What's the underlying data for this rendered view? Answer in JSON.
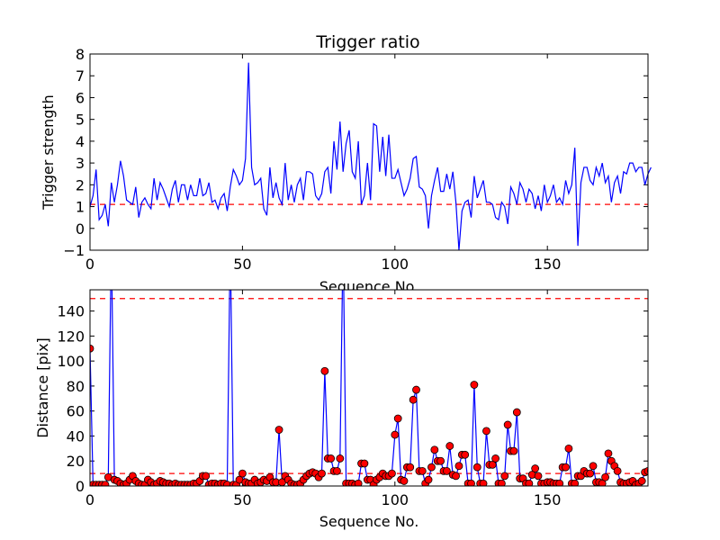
{
  "chart_data": [
    {
      "type": "line",
      "title": "Trigger ratio",
      "xlabel": "Sequence No.",
      "ylabel": "Trigger strength",
      "xlim": [
        0,
        183
      ],
      "ylim": [
        -1,
        8
      ],
      "xticks": [
        "0",
        "50",
        "100",
        "150"
      ],
      "yticks": [
        "−1",
        "0",
        "1",
        "2",
        "3",
        "4",
        "5",
        "6",
        "7",
        "8"
      ],
      "threshold": 1.1,
      "colors": {
        "line": "#0000ff",
        "threshold": "#ff0000"
      },
      "series": [
        {
          "values": [
            1.0,
            1.5,
            2.7,
            0.4,
            0.6,
            1.1,
            0.1,
            2.1,
            1.2,
            2.0,
            3.1,
            2.4,
            1.3,
            1.2,
            1.1,
            1.9,
            0.5,
            1.2,
            1.4,
            1.1,
            0.9,
            2.3,
            1.3,
            2.1,
            1.8,
            1.4,
            1.0,
            1.8,
            2.2,
            1.2,
            2.0,
            2.0,
            1.3,
            2.0,
            1.5,
            1.5,
            2.3,
            1.5,
            1.6,
            2.1,
            1.2,
            1.3,
            0.9,
            1.4,
            1.6,
            0.8,
            1.9,
            2.7,
            2.4,
            2.0,
            2.2,
            3.2,
            7.6,
            2.8,
            2.0,
            2.1,
            2.3,
            0.9,
            0.6,
            2.8,
            1.4,
            2.1,
            1.4,
            1.1,
            3.0,
            1.3,
            2.0,
            1.2,
            2.0,
            2.3,
            1.3,
            2.6,
            2.6,
            2.5,
            1.5,
            1.3,
            1.6,
            2.6,
            2.8,
            1.6,
            4.0,
            2.7,
            4.9,
            2.6,
            3.9,
            4.5,
            2.6,
            2.3,
            4.0,
            1.1,
            1.5,
            3.0,
            1.3,
            4.8,
            4.7,
            2.6,
            4.2,
            2.4,
            4.3,
            2.3,
            2.3,
            2.7,
            2.1,
            1.5,
            1.8,
            2.3,
            3.2,
            3.3,
            1.9,
            1.8,
            1.5,
            0.0,
            1.5,
            2.2,
            2.8,
            1.7,
            1.7,
            2.5,
            1.8,
            2.6,
            1.2,
            -1.0,
            0.8,
            1.2,
            1.3,
            0.5,
            2.4,
            1.4,
            1.8,
            2.2,
            1.2,
            1.2,
            1.1,
            0.5,
            0.4,
            1.2,
            1.0,
            0.2,
            1.9,
            1.6,
            1.1,
            2.1,
            1.8,
            1.2,
            1.8,
            1.6,
            0.9,
            1.5,
            0.8,
            2.0,
            1.2,
            1.5,
            2.0,
            1.2,
            1.4,
            1.1,
            2.2,
            1.6,
            2.0,
            3.7,
            -0.8,
            2.1,
            2.8,
            2.8,
            2.2,
            2.0,
            2.8,
            2.4,
            3.0,
            2.1,
            2.4,
            1.2,
            2.1,
            2.4,
            1.6,
            2.6,
            2.5,
            3.0,
            3.0,
            2.6,
            2.8,
            2.8,
            2.0,
            2.5,
            2.8
          ]
        }
      ]
    },
    {
      "type": "line",
      "title": "",
      "xlabel": "Sequence No.",
      "ylabel": "Distance [pix]",
      "xlim": [
        0,
        183
      ],
      "ylim": [
        0,
        157
      ],
      "xticks": [
        "0",
        "50",
        "100",
        "150"
      ],
      "yticks": [
        "0",
        "20",
        "40",
        "60",
        "80",
        "100",
        "120",
        "140"
      ],
      "thresholds": [
        10,
        150
      ],
      "colors": {
        "line": "#0000ff",
        "marker": "#ff0000",
        "threshold": "#ff0000"
      },
      "series": [
        {
          "values": [
            110,
            1,
            1,
            1,
            1,
            1,
            7,
            200,
            5,
            4,
            2,
            1,
            2,
            5,
            8,
            4,
            2,
            1,
            1,
            5,
            3,
            1,
            2,
            4,
            3,
            2,
            2,
            1,
            2,
            1,
            1,
            1,
            1,
            1,
            2,
            2,
            4,
            8,
            8,
            1,
            2,
            2,
            1,
            2,
            2,
            1,
            200,
            1,
            1,
            5,
            10,
            3,
            2,
            2,
            5,
            2,
            3,
            5,
            4,
            7,
            3,
            3,
            45,
            3,
            8,
            5,
            2,
            1,
            1,
            2,
            5,
            8,
            10,
            11,
            10,
            7,
            10,
            92,
            22,
            22,
            12,
            12,
            22,
            200,
            2,
            2,
            2,
            1,
            2,
            18,
            18,
            5,
            5,
            1,
            5,
            7,
            10,
            8,
            8,
            10,
            41,
            54,
            5,
            4,
            15,
            15,
            69,
            77,
            12,
            12,
            2,
            5,
            15,
            29,
            20,
            20,
            12,
            12,
            32,
            9,
            8,
            16,
            25,
            25,
            2,
            2,
            81,
            15,
            2,
            2,
            44,
            17,
            17,
            22,
            2,
            2,
            8,
            49,
            28,
            28,
            59,
            6,
            6,
            2,
            2,
            9,
            14,
            8,
            2,
            2,
            3,
            3,
            2,
            2,
            2,
            15,
            15,
            30,
            2,
            2,
            8,
            8,
            12,
            10,
            10,
            16,
            3,
            3,
            2,
            7,
            26,
            20,
            16,
            12,
            3,
            2,
            2,
            3,
            4,
            1,
            2,
            4,
            11,
            12,
            12
          ]
        }
      ]
    }
  ]
}
